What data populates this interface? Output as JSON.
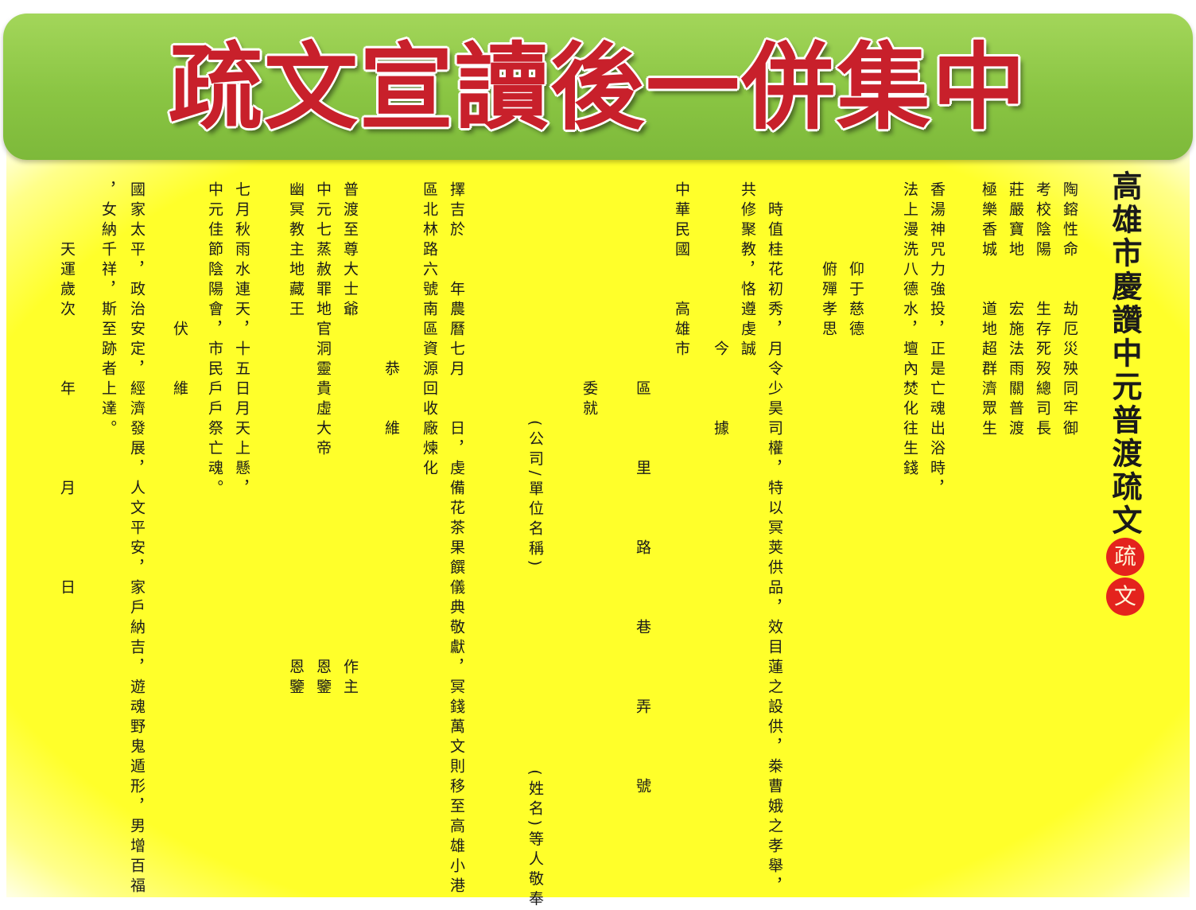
{
  "banner": {
    "title": "疏文宣讀後一併集中"
  },
  "document": {
    "heading": "高雄市慶讚中元普渡疏文",
    "seal_chars": [
      "疏",
      "文"
    ],
    "columns": [
      "陶鎔性命　　劫厄災殃同牢御",
      "考校陰陽　　生存死歿總司長",
      "莊嚴寶地　　宏施法雨關普渡",
      "極樂香城　　道地超群濟眾生",
      "香湯神咒力強投，正是亡魂出浴時，",
      "法上漫洗八德水，壇內焚化往生錢",
      "　　　　仰于慈德",
      "　　　　俯殫孝思",
      "　時值桂花初秀，月令少昊司權，特以冥荚供品，效目蓮之設供，桊曹娥之孝舉，",
      "共修聚教，恪遵虔誠",
      "　　　　　　　　今　　　據",
      "　　　　　　　　　　委就",
      "中華民國　　高雄市",
      "　　　　　　　　　　區　　　里　　　路　　　巷　　　弄　　　號",
      "　　　　　　　　　　　　(公司/單位名稱)　　　　　　　　　　(姓名)等人敬奉",
      "擇吉於　　年農曆七月　　日，虔備花茶果饌儀典敬獻，冥錢萬文則移至高雄小港",
      "區北林路六號南區資源回收廠煉化",
      "　　　　　　　　　恭　　維",
      "普渡至尊大士爺　　　　　　　　　　　　　　　　　作主",
      "中元七蒸赦罪地官洞靈貴虛大帝　　　　　　　　　　恩鑒",
      "幽冥教主地藏王　　　　　　　　　　　　　　　　　恩鑒",
      "七月秋雨水連天，十五日月天上懸，",
      "中元佳節陰陽會，市民戶戶祭亡魂。",
      "　　　　　　　伏　　維",
      "國家太平，政治安定，經濟發展，人文平安，家戶納吉，遊魂野鬼遁形，男增百福",
      "，女納千祥，斯至跡者上達。",
      "　　　天運歲次　　　年　　　　月　　　　日"
    ]
  }
}
